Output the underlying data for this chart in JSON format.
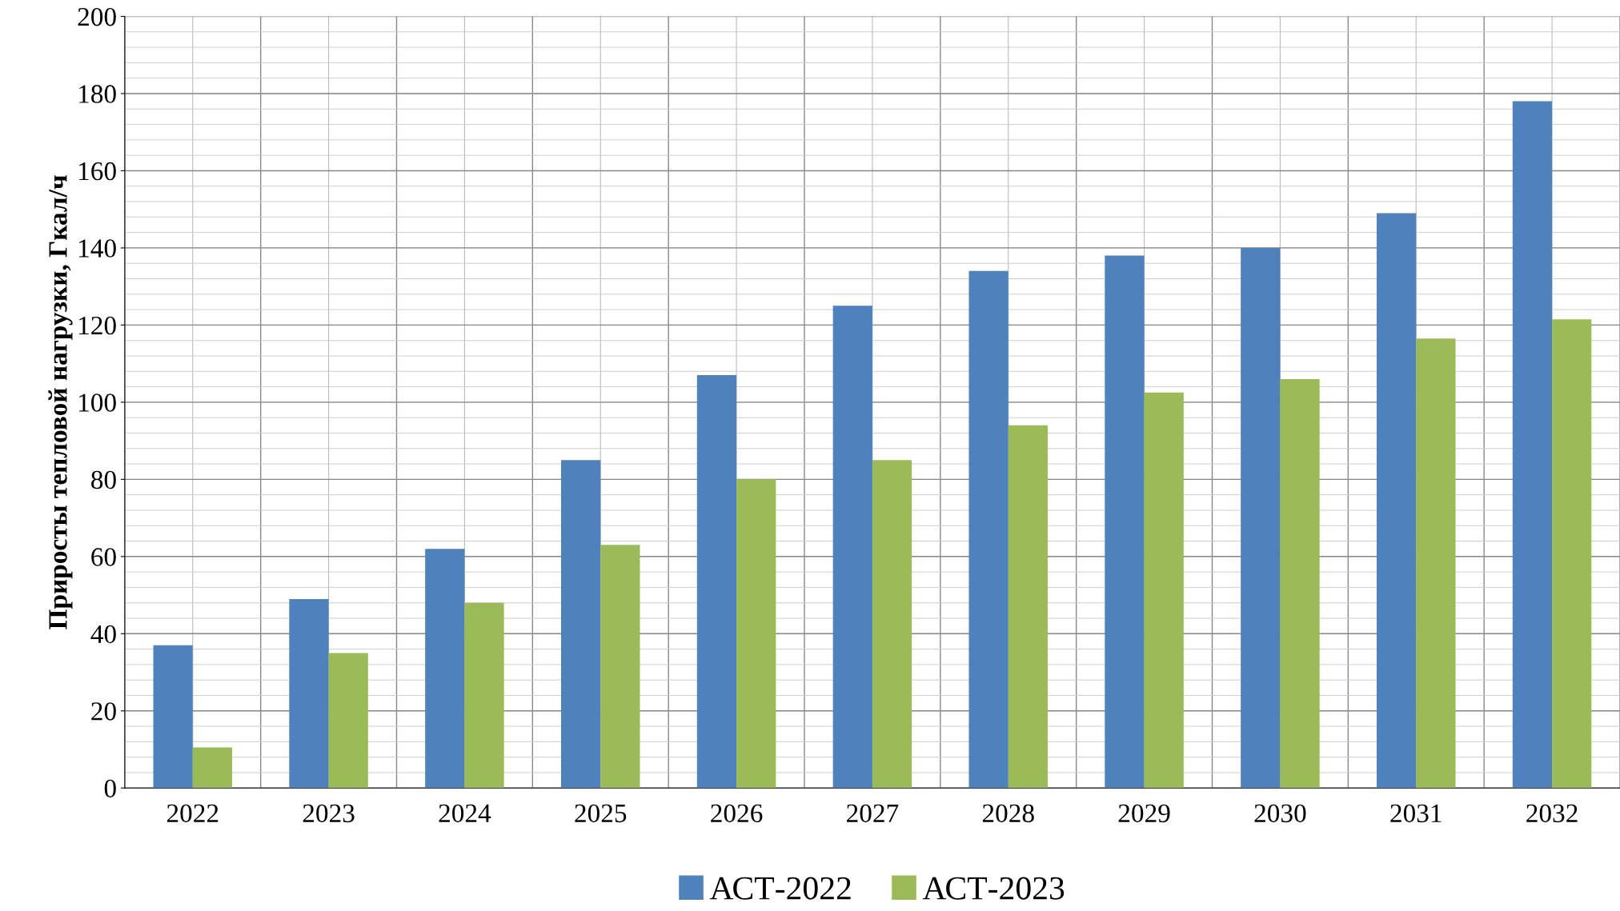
{
  "chart_data": {
    "type": "bar",
    "ylabel": "Приросты тепловой нагрузки, Гкал/ч",
    "categories": [
      "2022",
      "2023",
      "2024",
      "2025",
      "2026",
      "2027",
      "2028",
      "2029",
      "2030",
      "2031",
      "2032"
    ],
    "series": [
      {
        "name": "АСТ-2022",
        "color": "#4f81bd",
        "values": [
          37,
          49,
          62,
          85,
          107,
          125,
          134,
          138,
          140,
          149,
          178
        ]
      },
      {
        "name": "АСТ-2023",
        "color": "#9bbb59",
        "values": [
          10.5,
          35,
          48,
          63,
          80,
          85,
          94,
          102.5,
          106,
          116.5,
          121.5
        ]
      }
    ],
    "ylim": [
      0,
      200
    ],
    "yticks": [
      0,
      20,
      40,
      60,
      80,
      100,
      120,
      140,
      160,
      180,
      200
    ],
    "grid": true,
    "legend": "bottom"
  }
}
